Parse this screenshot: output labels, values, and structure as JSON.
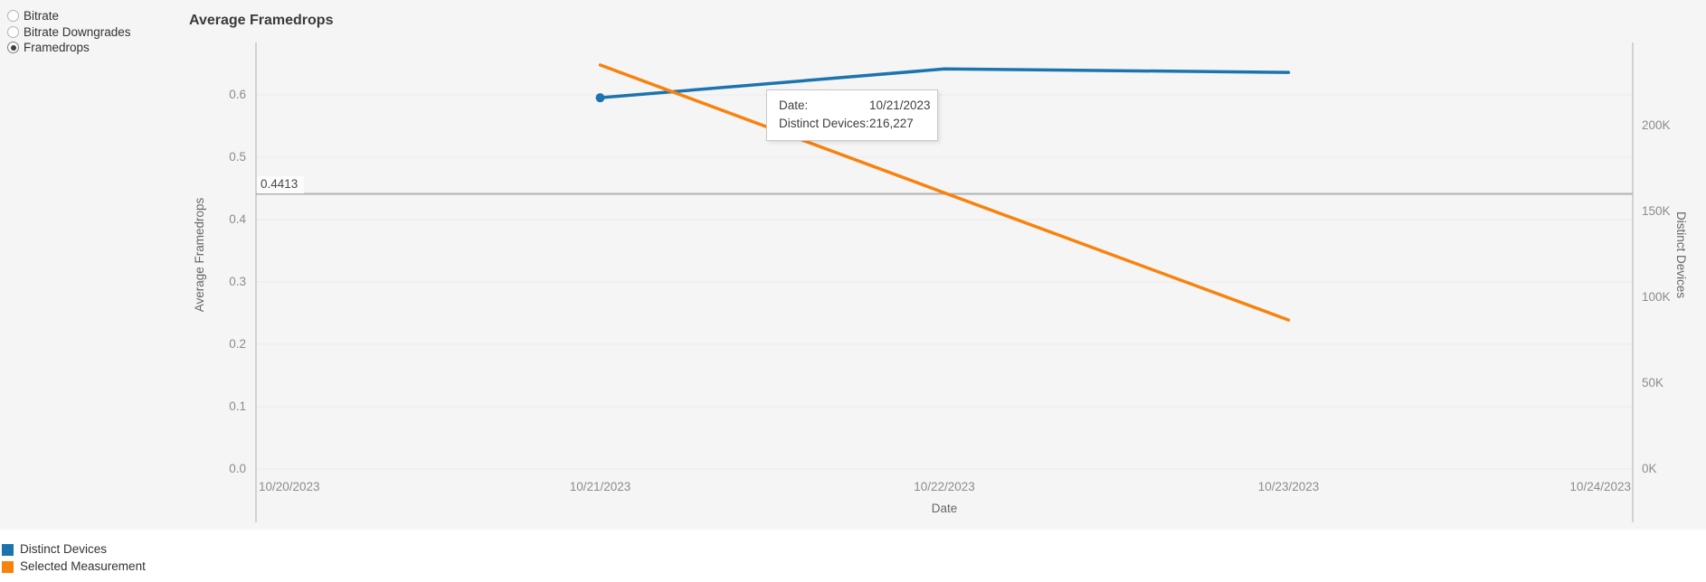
{
  "radio_group": {
    "options": [
      {
        "label": "Bitrate",
        "selected": false
      },
      {
        "label": "Bitrate Downgrades",
        "selected": false
      },
      {
        "label": "Framedrops",
        "selected": true
      }
    ]
  },
  "tooltip": {
    "rows": [
      {
        "label": "Date:",
        "value": "10/21/2023"
      },
      {
        "label": "Distinct Devices:",
        "value": "216,227"
      }
    ]
  },
  "legend": {
    "items": [
      {
        "label": "Distinct Devices",
        "color": "#1c74ae"
      },
      {
        "label": "Selected Measurement",
        "color": "#f8820e"
      }
    ]
  },
  "colors": {
    "panel_background": "#f5f5f5",
    "gridline": "#eaeaea",
    "axis_line": "#c6c6c6",
    "reference_line": "#b1b1b1",
    "tick_text": "#8c8c8c"
  },
  "chart_data": {
    "type": "line",
    "title": "Average Framedrops",
    "x_axis": {
      "title": "Date",
      "ticks": [
        "10/20/2023",
        "10/21/2023",
        "10/22/2023",
        "10/23/2023",
        "10/24/2023"
      ]
    },
    "left_axis": {
      "title": "Average Framedrops",
      "range": [
        0,
        0.684
      ],
      "ticks": [
        {
          "label": "0.0",
          "value": 0.0
        },
        {
          "label": "0.1",
          "value": 0.1
        },
        {
          "label": "0.2",
          "value": 0.2
        },
        {
          "label": "0.3",
          "value": 0.3
        },
        {
          "label": "0.4",
          "value": 0.4
        },
        {
          "label": "0.5",
          "value": 0.5
        },
        {
          "label": "0.6",
          "value": 0.6
        }
      ]
    },
    "right_axis": {
      "title": "Distinct Devices",
      "range": [
        0,
        236000
      ],
      "ticks": [
        {
          "label": "0K",
          "value": 0
        },
        {
          "label": "50K",
          "value": 50000
        },
        {
          "label": "100K",
          "value": 100000
        },
        {
          "label": "150K",
          "value": 150000
        },
        {
          "label": "200K",
          "value": 200000
        }
      ]
    },
    "series": [
      {
        "name": "Distinct Devices",
        "axis": "right",
        "color": "#1c74ae",
        "x": [
          "10/21/2023",
          "10/22/2023",
          "10/23/2023"
        ],
        "values": [
          216227,
          233000,
          231000
        ]
      },
      {
        "name": "Selected Measurement",
        "axis": "left",
        "color": "#f8820e",
        "x": [
          "10/21/2023",
          "10/22/2023",
          "10/23/2023"
        ],
        "values": [
          0.648,
          0.443,
          0.239
        ]
      }
    ],
    "reference_line": {
      "label": "0.4413",
      "value": 0.4413,
      "axis": "left"
    },
    "hover_point": {
      "series": "Distinct Devices",
      "x": "10/21/2023",
      "value": 216227
    },
    "grid": "horizontal",
    "legend_position": "bottom-left"
  }
}
